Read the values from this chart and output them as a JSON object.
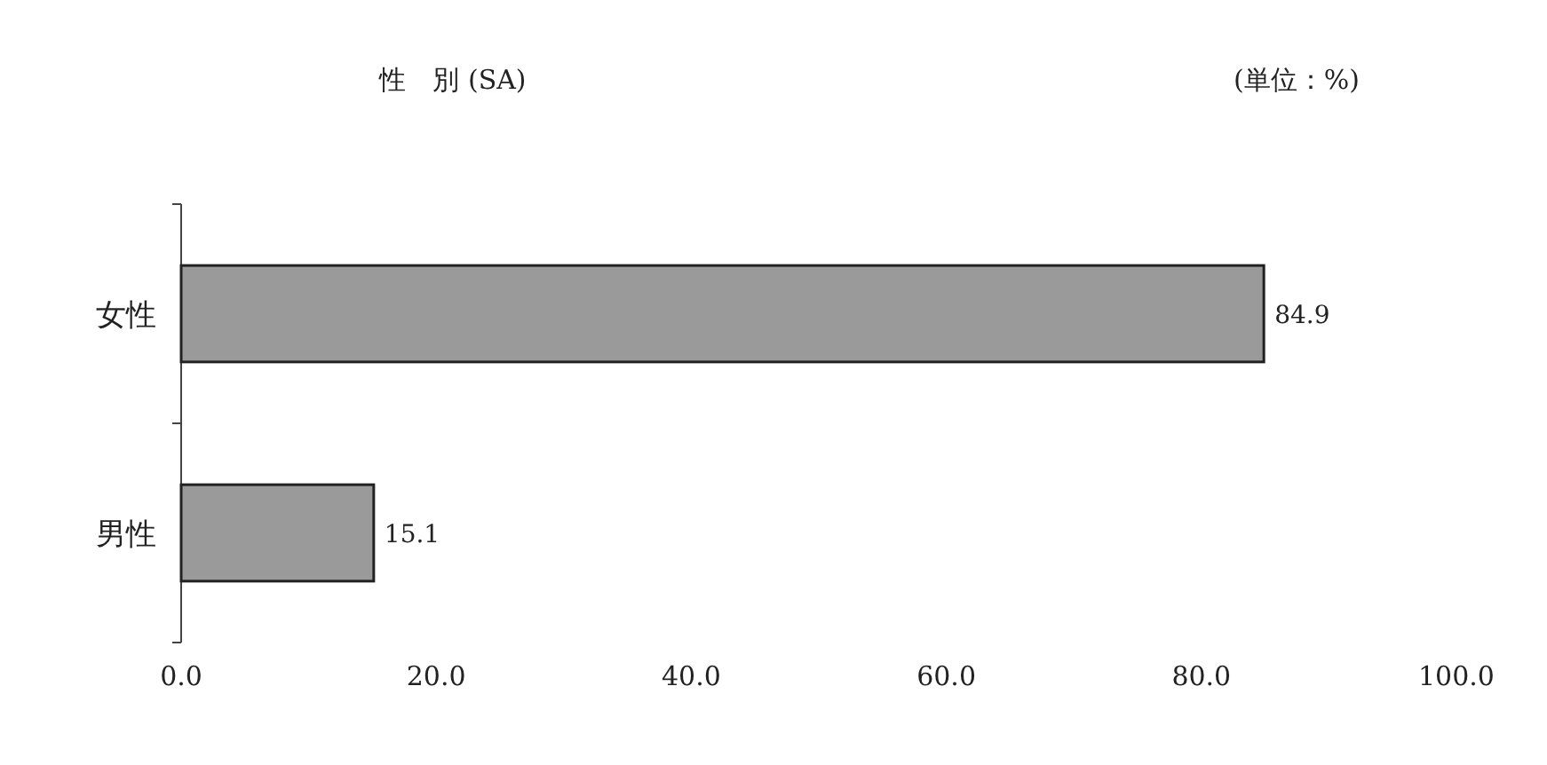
{
  "chart_data": {
    "type": "bar",
    "orientation": "horizontal",
    "title": "性　別 (SA)",
    "annotations": [
      "(単位：%)"
    ],
    "categories": [
      "女性",
      "男性"
    ],
    "values": [
      84.9,
      15.1
    ],
    "color": "#9a9a9a",
    "data_labels": true,
    "xlim": [
      0,
      100
    ],
    "xticks": [
      {
        "value": 0,
        "label": "0.0"
      },
      {
        "value": 20,
        "label": "20.0"
      },
      {
        "value": 40,
        "label": "40.0"
      },
      {
        "value": 60,
        "label": "60.0"
      },
      {
        "value": 80,
        "label": "80.0"
      },
      {
        "value": 100,
        "label": "100.0"
      }
    ]
  }
}
